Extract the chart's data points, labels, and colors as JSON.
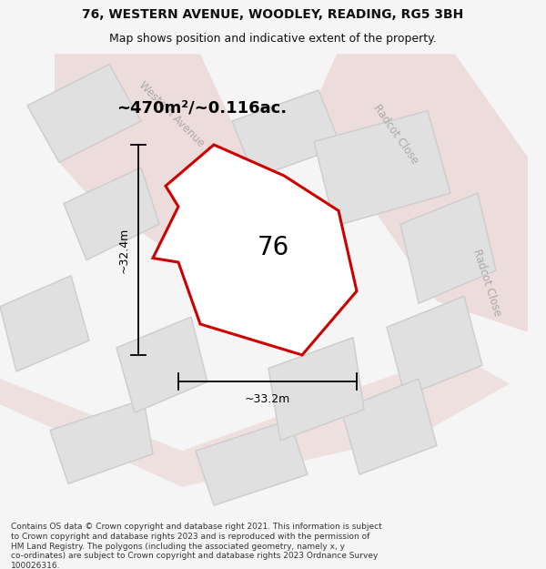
{
  "title_line1": "76, WESTERN AVENUE, WOODLEY, READING, RG5 3BH",
  "title_line2": "Map shows position and indicative extent of the property.",
  "area_label": "~470m²/~0.116ac.",
  "width_label": "~33.2m",
  "height_label": "~32.4m",
  "property_number": "76",
  "footer_lines": [
    "Contains OS data © Crown copyright and database right 2021. This information is subject",
    "to Crown copyright and database rights 2023 and is reproduced with the permission of",
    "HM Land Registry. The polygons (including the associated geometry, namely x, y",
    "co-ordinates) are subject to Crown copyright and database rights 2023 Ordnance Survey",
    "100026316."
  ],
  "bg_color": "#f5f5f5",
  "map_bg": "#efefef",
  "plot_fill": "#ffffff",
  "plot_edge": "#cc0000",
  "neighbor_fill": "#e0e0e0",
  "neighbor_edge": "#cccccc",
  "road_color": "#e8c8c8",
  "street_label_color": "#aaaaaa",
  "dim_color": "#000000",
  "property_label_color": "#000000",
  "title_color": "#111111",
  "footer_color": "#333333",
  "figsize": [
    6.0,
    6.25
  ],
  "dpi": 100
}
